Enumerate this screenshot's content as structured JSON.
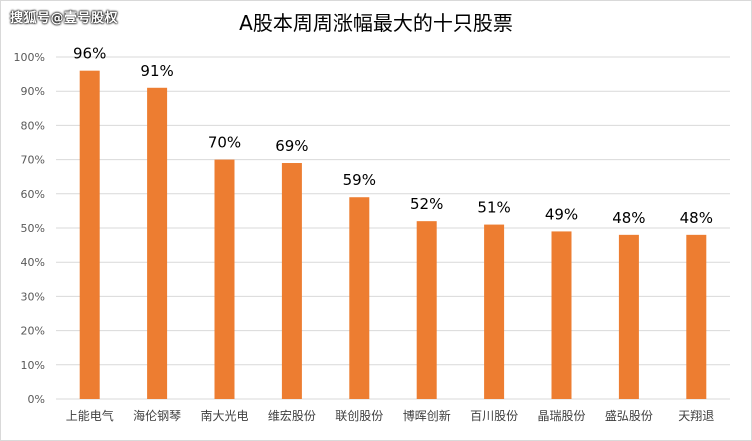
{
  "watermark": "搜狐号@壹号股权",
  "chart_data": {
    "type": "bar",
    "title": "A股本周周涨幅最大的十只股票",
    "categories": [
      "上能电气",
      "海伦钢琴",
      "南大光电",
      "维宏股份",
      "联创股份",
      "博晖创新",
      "百川股份",
      "晶瑞股份",
      "盛弘股份",
      "天翔退"
    ],
    "values": [
      96,
      91,
      70,
      69,
      59,
      52,
      51,
      49,
      48,
      48
    ],
    "data_labels": [
      "96%",
      "91%",
      "70%",
      "69%",
      "59%",
      "52%",
      "51%",
      "49%",
      "48%",
      "48%"
    ],
    "y_ticks": [
      "0%",
      "10%",
      "20%",
      "30%",
      "40%",
      "50%",
      "60%",
      "70%",
      "80%",
      "90%",
      "100%"
    ],
    "ylim": [
      0,
      100
    ],
    "xlabel": "",
    "ylabel": "",
    "grid": true,
    "legend": "none",
    "bar_color": "#ed7d31"
  }
}
